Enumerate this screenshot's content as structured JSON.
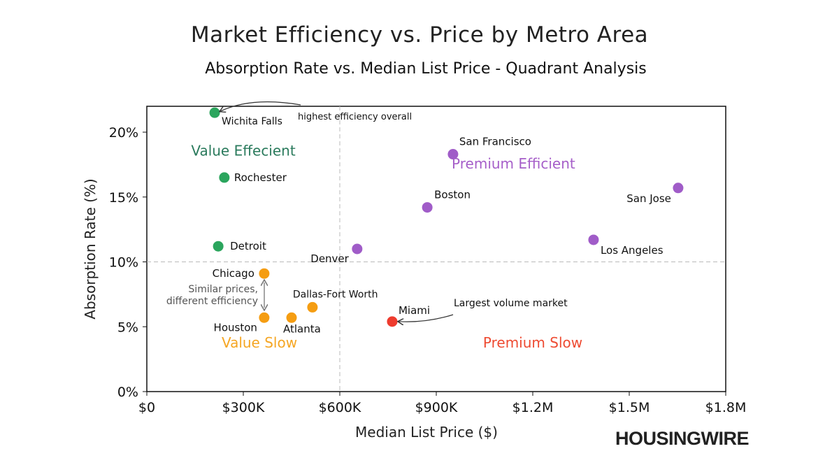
{
  "chart_data": {
    "type": "scatter",
    "title": "Market Efficiency vs. Price by Metro Area",
    "subtitle": "Absorption Rate vs. Median List Price - Quadrant Analysis",
    "xlabel": "Median List Price ($)",
    "ylabel": "Absorption Rate (%)",
    "xlim": [
      0,
      1800000
    ],
    "ylim": [
      0,
      22
    ],
    "xticks": [
      {
        "v": 0,
        "label": "$0"
      },
      {
        "v": 300000,
        "label": "$300K"
      },
      {
        "v": 600000,
        "label": "$600K"
      },
      {
        "v": 900000,
        "label": "$900K"
      },
      {
        "v": 1200000,
        "label": "$1.2M"
      },
      {
        "v": 1500000,
        "label": "$1.5M"
      },
      {
        "v": 1800000,
        "label": "$1.8M"
      }
    ],
    "yticks": [
      {
        "v": 0,
        "label": "0%"
      },
      {
        "v": 5,
        "label": "5%"
      },
      {
        "v": 10,
        "label": "10%"
      },
      {
        "v": 15,
        "label": "15%"
      },
      {
        "v": 20,
        "label": "20%"
      }
    ],
    "grid": false,
    "quadrant_dividers": {
      "x": 600000,
      "y": 10
    },
    "colors": {
      "value_efficient": "#2ba55d",
      "premium_efficient": "#a05cc8",
      "value_slow": "#f59d12",
      "premium_slow": "#ee3b2e"
    },
    "quadrants": [
      {
        "label": "Value Effecient",
        "color": "#2a7a5c",
        "x": 300000,
        "y": 18.2
      },
      {
        "label": "Premium Efficient",
        "color": "#a65fc9",
        "x": 1140000,
        "y": 17.2
      },
      {
        "label": "Value Slow",
        "color": "#f5a623",
        "x": 350000,
        "y": 3.4
      },
      {
        "label": "Premium Slow",
        "color": "#ee4b32",
        "x": 1200000,
        "y": 3.4
      }
    ],
    "points": [
      {
        "name": "Wichita Falls",
        "x": 211000,
        "y": 21.5,
        "group": "value_efficient"
      },
      {
        "name": "Rochester",
        "x": 241000,
        "y": 16.5,
        "group": "value_efficient"
      },
      {
        "name": "Detroit",
        "x": 222000,
        "y": 11.2,
        "group": "value_efficient"
      },
      {
        "name": "Chicago",
        "x": 365000,
        "y": 9.1,
        "group": "value_slow"
      },
      {
        "name": "Houston",
        "x": 365000,
        "y": 5.7,
        "group": "value_slow"
      },
      {
        "name": "Atlanta",
        "x": 450000,
        "y": 5.7,
        "group": "value_slow"
      },
      {
        "name": "Dallas-Fort Worth",
        "x": 515000,
        "y": 6.5,
        "group": "value_slow"
      },
      {
        "name": "Miami",
        "x": 763000,
        "y": 5.4,
        "group": "premium_slow"
      },
      {
        "name": "Denver",
        "x": 654000,
        "y": 11.0,
        "group": "premium_efficient"
      },
      {
        "name": "Boston",
        "x": 872000,
        "y": 14.2,
        "group": "premium_efficient"
      },
      {
        "name": "San Francisco",
        "x": 952000,
        "y": 18.3,
        "group": "premium_efficient"
      },
      {
        "name": "Los Angeles",
        "x": 1389000,
        "y": 11.7,
        "group": "premium_efficient"
      },
      {
        "name": "San Jose",
        "x": 1652000,
        "y": 15.7,
        "group": "premium_efficient"
      }
    ],
    "annotations": [
      {
        "text": "highest efficiency overall",
        "target": "Wichita Falls"
      },
      {
        "text": "Largest volume market",
        "target": "Miami"
      },
      {
        "text": "Similar prices,",
        "text2": "different efficiency",
        "target": "Chicago-Houston"
      }
    ]
  },
  "brand": {
    "logo_text": "HOUSINGWIRE"
  }
}
